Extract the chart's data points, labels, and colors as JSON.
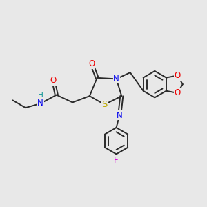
{
  "bg_color": "#e8e8e8",
  "bond_color": "#2a2a2a",
  "bond_width": 1.4,
  "atom_colors": {
    "N": "#0000ee",
    "O": "#ee0000",
    "S": "#bbaa00",
    "F": "#dd00dd",
    "H": "#009090",
    "C": "#2a2a2a"
  },
  "font_size": 8.5,
  "fig_width": 3.0,
  "fig_height": 3.0,
  "dpi": 100
}
